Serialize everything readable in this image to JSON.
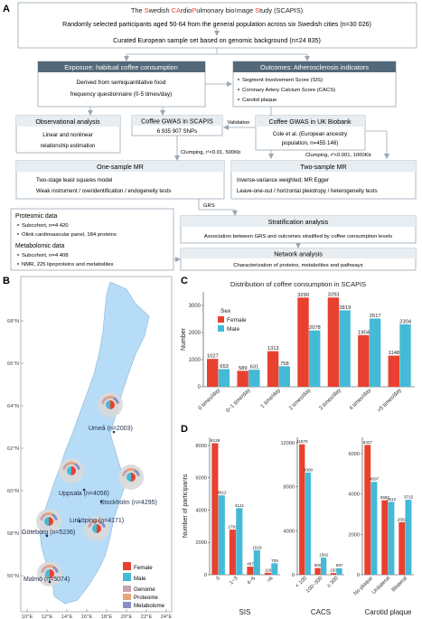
{
  "panels": {
    "a": "A",
    "b": "B",
    "c": "C",
    "d": "D"
  },
  "flow": {
    "title_parts": [
      {
        "t": "The ",
        "red": false
      },
      {
        "t": "S",
        "red": true
      },
      {
        "t": "wedish ",
        "red": false
      },
      {
        "t": "CA",
        "red": true
      },
      {
        "t": "rdio",
        "red": false
      },
      {
        "t": "P",
        "red": true
      },
      {
        "t": "ulmonary bio",
        "red": false
      },
      {
        "t": "I",
        "red": true
      },
      {
        "t": "mage ",
        "red": false
      },
      {
        "t": "S",
        "red": true
      },
      {
        "t": "tudy (SCAPIS)",
        "red": false
      }
    ],
    "participants": "Randomly selected participants aged 50-64 from the general population across six Swedish cities (n=30 026)",
    "curated": "Curated European sample set based on genomic background (n=24 835)",
    "exposure_header": "Exposure: habitual coffee consumption",
    "exposure_lines": [
      "Derived from semiquantitative food",
      "frequency questionnaire (0-5 times/day)"
    ],
    "outcomes_header": "Outcomes: Atherosclerosis indicators",
    "outcomes_items": [
      "Segment Involvement Score (SIS)",
      "Coronary Artery Calcium Score (CACS)",
      "Carotid plaque"
    ],
    "obs_header": "Observational analysis",
    "obs_lines": [
      "Linear and nonlinear",
      "relationship estimation"
    ],
    "gwas_scapis_header": "Coffee GWAS in SCAPIS",
    "gwas_scapis_line": "6 935 907 SNPs",
    "validation": "Validation",
    "gwas_ukb_header": "Coffee GWAS in UK Biobank",
    "gwas_ukb_lines": [
      "Cole et al. (European ancestry",
      "population, n=455 146)"
    ],
    "clump1": "Clumping, r²<0.01, 500Kb",
    "clump2": "Clumping, r²<0.001, 1000Kb",
    "one_mr_header": "One-sample MR",
    "one_mr_lines": [
      "Two-stage least squares model",
      "Weak instrument / overidentification / endogeneity tests"
    ],
    "two_mr_header": "Two-sample MR",
    "two_mr_lines": [
      "Inverse-variance weighted; MR Egger",
      "Leave-one-out / horizontal pleiotropy / heterogeneity tests"
    ],
    "grs": "GRS",
    "proteomic_title": "Proteomic data",
    "proteomic_items": [
      "Subcohort, n=4 420",
      "Olink cardiovascular panel, 184 proteins"
    ],
    "metabolomic_title": "Metabolomic data",
    "metabolomic_items": [
      "Subcohort, n=4 408",
      "NMR, 225 lipoproteins and metabolites"
    ],
    "strat_header": "Stratification analysis",
    "strat_line": "Association between GRS and outcomes stratified by coffee consumption levels",
    "network_header": "Network analysis",
    "network_line": "Characterization of proteins, metabolites and pathways"
  },
  "map": {
    "lat_labels": [
      "68°N",
      "66°N",
      "64°N",
      "62°N",
      "60°N",
      "58°N",
      "56°N"
    ],
    "lon_labels": [
      "10°E",
      "12°E",
      "14°E",
      "16°E",
      "18°E",
      "20°E",
      "22°E",
      "24°E"
    ],
    "cities": [
      {
        "label": "Umeå (n=2003)",
        "female": 1,
        "male": 1
      },
      {
        "label": "Uppsala (n=4056)",
        "female": 1,
        "male": 1
      },
      {
        "label": "Stockholm (n=4295)",
        "female": 1,
        "male": 1
      },
      {
        "label": "Linköping (n=4171)",
        "female": 1,
        "male": 1
      },
      {
        "label": "Göteborg (n=5236)",
        "female": 1,
        "male": 1
      },
      {
        "label": "Malmö (n=5074)",
        "female": 1,
        "male": 1
      }
    ],
    "legend_sex": [
      "Female",
      "Male"
    ],
    "legend_omics": [
      "Genome",
      "Proteome",
      "Metabolome"
    ]
  },
  "colors": {
    "female": "#e8412f",
    "male": "#45bad6",
    "box_dark": "#536878",
    "sweden": "#b6dcf7",
    "genome": "#c8a2a8",
    "proteome": "#e6a47f",
    "metabolome": "#8a8fc2"
  },
  "chart_data": [
    {
      "type": "bar",
      "title": "Distribution of coffee consumption in SCAPIS",
      "xlabel": "",
      "ylabel": "Number",
      "ylim": [
        0,
        3500
      ],
      "yticks": [
        "0",
        "1000",
        "2000",
        "3000"
      ],
      "legend_title": "Sex",
      "legend_placement": "top-left",
      "categories": [
        "0 times/day",
        "0~1 time/day",
        "1 time/day",
        "2 times/day",
        "3 times/day",
        "4 times/day",
        ">5 times/day"
      ],
      "series": [
        {
          "name": "Female",
          "values": [
            1027,
            589,
            1313,
            3290,
            3293,
            1904,
            1148
          ]
        },
        {
          "name": "Male",
          "values": [
            653,
            631,
            758,
            2078,
            2819,
            2517,
            2304
          ]
        }
      ],
      "value_labels": [
        [
          "1027",
          "589",
          "1313",
          "3290",
          "3293",
          "1904",
          "1148"
        ],
        [
          "653",
          "631",
          "758",
          "2078",
          "2819",
          "2517",
          "2304"
        ]
      ]
    },
    {
      "type": "bar",
      "xlabel": "SIS",
      "ylabel": "Number of participants",
      "ylim": [
        0,
        8500
      ],
      "yticks": [
        "0",
        "2000",
        "4000",
        "6000",
        "8000"
      ],
      "categories": [
        "0",
        "1~3",
        "4~6",
        ">6"
      ],
      "series": [
        {
          "name": "Female",
          "values": [
            8139,
            2791,
            497,
            116
          ]
        },
        {
          "name": "Male",
          "values": [
            4912,
            4121,
            1518,
            709
          ]
        }
      ],
      "value_labels": [
        [
          "8139",
          "2791",
          "497",
          "116"
        ],
        [
          "4912",
          "4121",
          "1518",
          "709"
        ]
      ]
    },
    {
      "type": "bar",
      "xlabel": "CACS",
      "ylabel": "",
      "ylim": [
        0,
        12500
      ],
      "yticks": [
        "0",
        "4000",
        "8000",
        "12000"
      ],
      "categories": [
        "< 100",
        "100~300",
        "≥ 300"
      ],
      "series": [
        {
          "name": "Female",
          "values": [
            11870,
            609,
            150
          ]
        },
        {
          "name": "Male",
          "values": [
            9300,
            1562,
            597
          ]
        }
      ],
      "value_labels": [
        [
          "11870",
          "609",
          "150"
        ],
        [
          "9300",
          "1562",
          "597"
        ]
      ]
    },
    {
      "type": "bar",
      "xlabel": "Carotid plaque",
      "ylabel": "",
      "ylim": [
        0,
        6800
      ],
      "yticks": [
        "0",
        "2000",
        "4000",
        "6000"
      ],
      "categories": [
        "No plaque",
        "Unilateral",
        "Bilateral"
      ],
      "series": [
        {
          "name": "Female",
          "values": [
            6427,
            3687,
            2602
          ]
        },
        {
          "name": "Male",
          "values": [
            4597,
            3612,
            3715
          ]
        }
      ],
      "value_labels": [
        [
          "6427",
          "3687",
          "2602"
        ],
        [
          "4597",
          "3612",
          "3715"
        ]
      ]
    }
  ]
}
